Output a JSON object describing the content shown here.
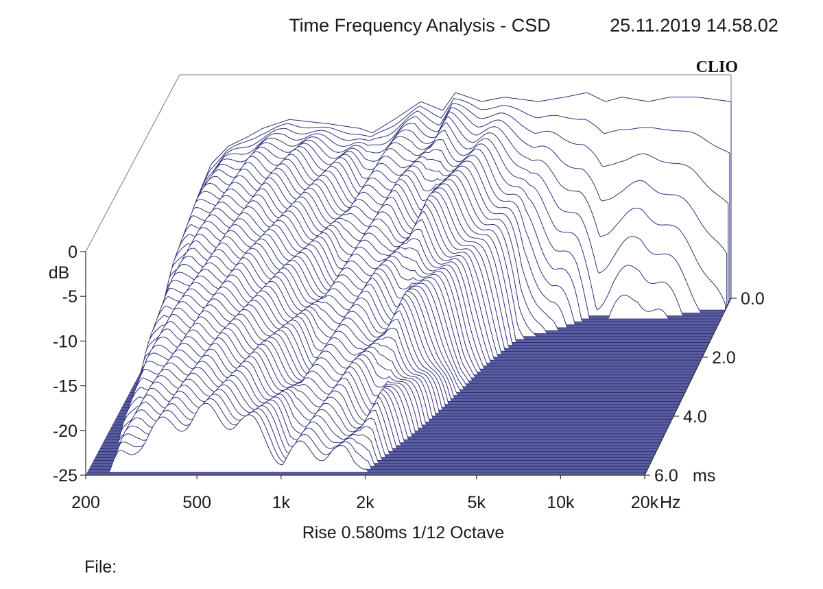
{
  "header": {
    "title": "Time Frequency Analysis - CSD",
    "datetime": "25.11.2019 14.58.02",
    "brand": "CLIO"
  },
  "footer": {
    "info": "Rise 0.580ms   1/12 Octave",
    "file_label": "File:"
  },
  "colors": {
    "trace": "#2b2f7a",
    "floor": "#5b5f9e",
    "axis": "#333333"
  },
  "chart_data": {
    "type": "waterfall",
    "title": "Time Frequency Analysis - CSD",
    "x_axis": {
      "scale": "log",
      "unit": "Hz",
      "range": [
        200,
        20000
      ],
      "ticks": [
        {
          "value": 200,
          "label": "200"
        },
        {
          "value": 500,
          "label": "500"
        },
        {
          "value": 1000,
          "label": "1k"
        },
        {
          "value": 2000,
          "label": "2k"
        },
        {
          "value": 5000,
          "label": "5k"
        },
        {
          "value": 10000,
          "label": "10k"
        },
        {
          "value": 20000,
          "label": "20k"
        }
      ]
    },
    "y_axis": {
      "unit": "dB",
      "range": [
        -25,
        0
      ],
      "ticks": [
        {
          "value": 0,
          "label": "0"
        },
        {
          "value": -5,
          "label": "-5"
        },
        {
          "value": -10,
          "label": "-10"
        },
        {
          "value": -15,
          "label": "-15"
        },
        {
          "value": -20,
          "label": "-20"
        },
        {
          "value": -25,
          "label": "-25"
        }
      ]
    },
    "z_axis": {
      "unit": "ms",
      "range": [
        0,
        6
      ],
      "ticks": [
        {
          "value": 0,
          "label": "0.0"
        },
        {
          "value": 2,
          "label": "2.0"
        },
        {
          "value": 4,
          "label": "4.0"
        },
        {
          "value": 6,
          "label": "6.0"
        }
      ]
    },
    "slice_count": 60,
    "time_step_ms": 0.1,
    "rise_ms": 0.58,
    "smoothing": "1/12 Octave",
    "initial_response_db": [
      [
        200,
        -23
      ],
      [
        230,
        -14
      ],
      [
        260,
        -10
      ],
      [
        300,
        -8
      ],
      [
        350,
        -7
      ],
      [
        400,
        -6
      ],
      [
        500,
        -5
      ],
      [
        700,
        -5.5
      ],
      [
        900,
        -6
      ],
      [
        1000,
        -6.5
      ],
      [
        1200,
        -5
      ],
      [
        1500,
        -3
      ],
      [
        1800,
        -4
      ],
      [
        2000,
        -2
      ],
      [
        2500,
        -3
      ],
      [
        3000,
        -2.5
      ],
      [
        4000,
        -3
      ],
      [
        5000,
        -2.5
      ],
      [
        6000,
        -2
      ],
      [
        7000,
        -3
      ],
      [
        8000,
        -2.5
      ],
      [
        10000,
        -3
      ],
      [
        12000,
        -2.5
      ],
      [
        15000,
        -2.5
      ],
      [
        20000,
        -3
      ]
    ],
    "decay_ms": [
      [
        200,
        6
      ],
      [
        300,
        6
      ],
      [
        400,
        6
      ],
      [
        500,
        6
      ],
      [
        600,
        6
      ],
      [
        700,
        6
      ],
      [
        800,
        5.6
      ],
      [
        900,
        5.2
      ],
      [
        1000,
        4.8
      ],
      [
        1200,
        4.6
      ],
      [
        1500,
        4.2
      ],
      [
        1800,
        4.0
      ],
      [
        2000,
        3.8
      ],
      [
        2500,
        3.0
      ],
      [
        3000,
        2.0
      ],
      [
        4000,
        1.0
      ],
      [
        5000,
        0.7
      ],
      [
        7000,
        0.4
      ],
      [
        10000,
        0.5
      ],
      [
        20000,
        0.25
      ]
    ]
  }
}
